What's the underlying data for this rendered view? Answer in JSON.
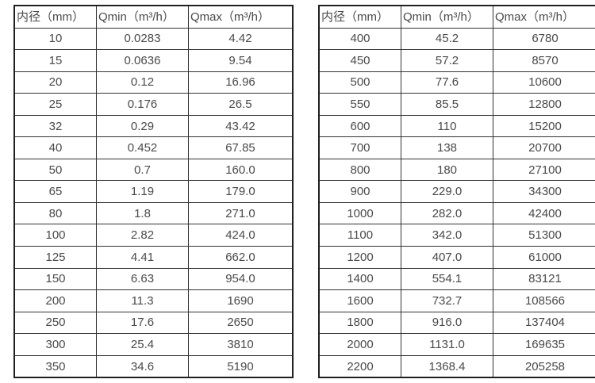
{
  "colors": {
    "background": "#ffffff",
    "table_border": "#1f1f1f",
    "cell_border": "#333333",
    "text": "#4a4a4a"
  },
  "tables": [
    {
      "name": "flow-table-small-diameters",
      "headers": [
        "内径（mm）",
        "Qmin（m³/h）",
        "Qmax（m³/h）"
      ],
      "rows": [
        [
          "10",
          "0.0283",
          "4.42"
        ],
        [
          "15",
          "0.0636",
          "9.54"
        ],
        [
          "20",
          "0.12",
          "16.96"
        ],
        [
          "25",
          "0.176",
          "26.5"
        ],
        [
          "32",
          "0.29",
          "43.42"
        ],
        [
          "40",
          "0.452",
          "67.85"
        ],
        [
          "50",
          "0.7",
          "160.0"
        ],
        [
          "65",
          "1.19",
          "179.0"
        ],
        [
          "80",
          "1.8",
          "271.0"
        ],
        [
          "100",
          "2.82",
          "424.0"
        ],
        [
          "125",
          "4.41",
          "662.0"
        ],
        [
          "150",
          "6.63",
          "954.0"
        ],
        [
          "200",
          "11.3",
          "1690"
        ],
        [
          "250",
          "17.6",
          "2650"
        ],
        [
          "300",
          "25.4",
          "3810"
        ],
        [
          "350",
          "34.6",
          "5190"
        ]
      ]
    },
    {
      "name": "flow-table-large-diameters",
      "headers": [
        "内径（mm）",
        "Qmin（m³/h）",
        "Qmax（m³/h）"
      ],
      "rows": [
        [
          "400",
          "45.2",
          "6780"
        ],
        [
          "450",
          "57.2",
          "8570"
        ],
        [
          "500",
          "77.6",
          "10600"
        ],
        [
          "550",
          "85.5",
          "12800"
        ],
        [
          "600",
          "110",
          "15200"
        ],
        [
          "700",
          "138",
          "20700"
        ],
        [
          "800",
          "180",
          "27100"
        ],
        [
          "900",
          "229.0",
          "34300"
        ],
        [
          "1000",
          "282.0",
          "42400"
        ],
        [
          "1100",
          "342.0",
          "51300"
        ],
        [
          "1200",
          "407.0",
          "61000"
        ],
        [
          "1400",
          "554.1",
          "83121"
        ],
        [
          "1600",
          "732.7",
          "108566"
        ],
        [
          "1800",
          "916.0",
          "137404"
        ],
        [
          "2000",
          "1131.0",
          "169635"
        ],
        [
          "2200",
          "1368.4",
          "205258"
        ]
      ]
    }
  ]
}
